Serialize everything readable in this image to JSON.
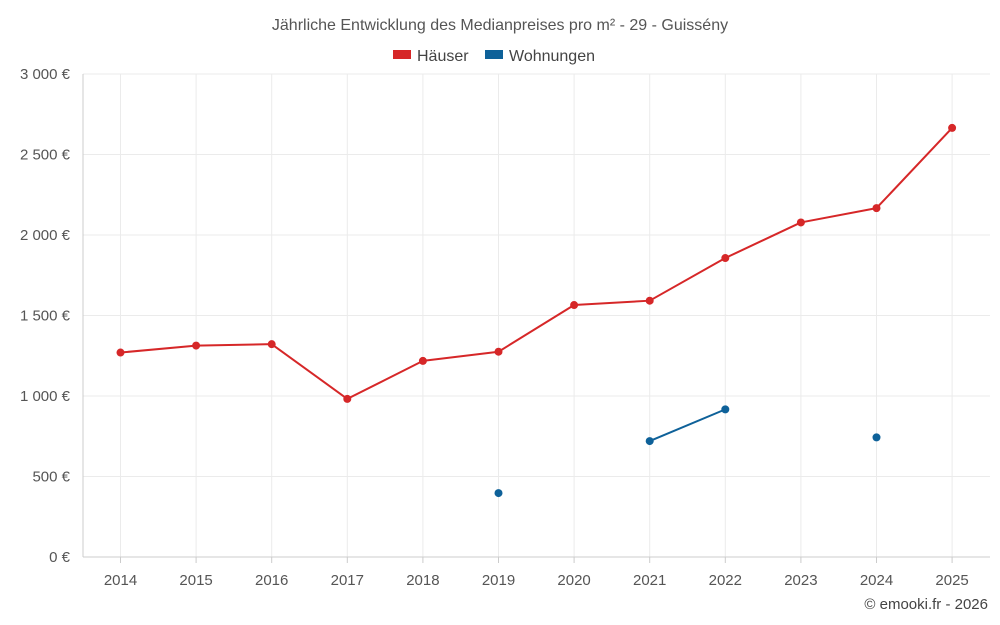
{
  "chart_data": {
    "type": "line",
    "title": "Jährliche Entwicklung des Medianpreises pro m² - 29 - Guissény",
    "categories": [
      "2014",
      "2015",
      "2016",
      "2017",
      "2018",
      "2019",
      "2020",
      "2021",
      "2022",
      "2023",
      "2024",
      "2025"
    ],
    "y_tick_labels": [
      "0 €",
      "500 €",
      "1 000 €",
      "1 500 €",
      "2 000 €",
      "2 500 €",
      "3 000 €"
    ],
    "y_ticks": [
      0,
      500,
      1000,
      1500,
      2000,
      2500,
      3000
    ],
    "ylim": [
      0,
      3000
    ],
    "xlabel": "",
    "ylabel": "",
    "grid": true,
    "legend_position": "top-center",
    "series": [
      {
        "name": "Häuser",
        "color": "#d62728",
        "values": [
          1270,
          1313,
          1322,
          982,
          1218,
          1275,
          1565,
          1592,
          1857,
          2078,
          2167,
          2665
        ]
      },
      {
        "name": "Wohnungen",
        "color": "#0e6199",
        "values": [
          null,
          null,
          null,
          null,
          null,
          397,
          null,
          720,
          917,
          null,
          743,
          null
        ]
      }
    ]
  },
  "credit": "© emooki.fr - 2026"
}
